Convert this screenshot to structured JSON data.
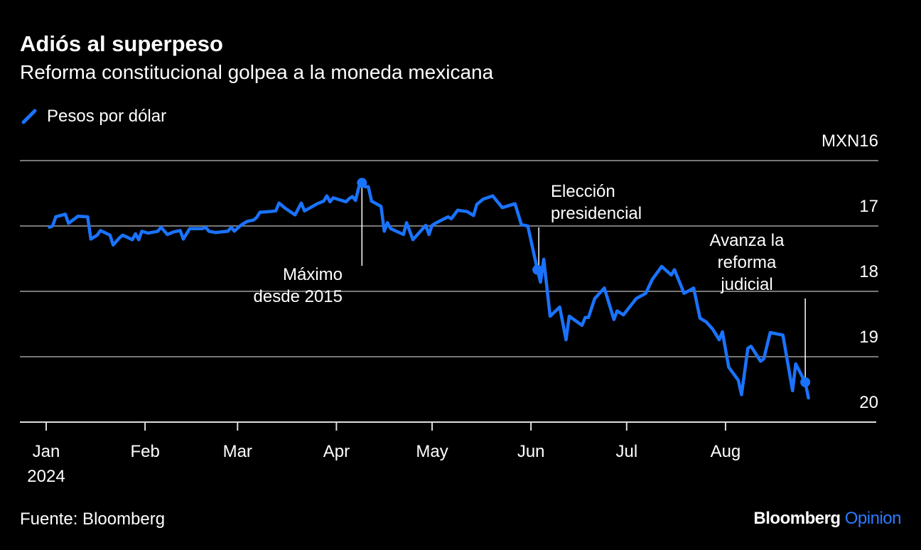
{
  "title": "Adiós al superpeso",
  "subtitle": "Reforma constitucional golpea a la moneda mexicana",
  "source": "Fuente: Bloomberg",
  "logo": {
    "brand": "Bloomberg",
    "product": "Opinion"
  },
  "colors": {
    "line": "#1a73ff",
    "background": "#000000",
    "grid": "#777777",
    "text": "#ffffff",
    "logo_accent": "#2b7bff"
  },
  "chart_data": {
    "type": "line",
    "legend": {
      "entries": [
        "Pesos por dólar"
      ],
      "placement": "top-left"
    },
    "y_axis": {
      "unit_label": "MXN16",
      "ticks": [
        16,
        17,
        18,
        19,
        20
      ],
      "tick_labels": [
        "MXN16",
        "17",
        "18",
        "19",
        "20"
      ],
      "range": [
        16,
        20
      ],
      "inverted": true,
      "position": "right"
    },
    "x_axis": {
      "range": [
        "2024-01-01",
        "2024-08-31"
      ],
      "ticks": [
        "2024-01-01",
        "2024-02-01",
        "2024-03-01",
        "2024-04-01",
        "2024-05-01",
        "2024-06-01",
        "2024-07-01",
        "2024-08-01"
      ],
      "tick_labels": [
        "Jan",
        "Feb",
        "Mar",
        "Apr",
        "May",
        "Jun",
        "Jul",
        "Aug"
      ],
      "year_label": "2024"
    },
    "grid": true,
    "series": [
      {
        "name": "Pesos por dólar",
        "points": [
          [
            "2024-01-02",
            17.02
          ],
          [
            "2024-01-03",
            17.0
          ],
          [
            "2024-01-04",
            16.86
          ],
          [
            "2024-01-07",
            16.82
          ],
          [
            "2024-01-08",
            16.96
          ],
          [
            "2024-01-11",
            16.85
          ],
          [
            "2024-01-14",
            16.86
          ],
          [
            "2024-01-15",
            17.2
          ],
          [
            "2024-01-17",
            17.14
          ],
          [
            "2024-01-18",
            17.07
          ],
          [
            "2024-01-21",
            17.14
          ],
          [
            "2024-01-22",
            17.29
          ],
          [
            "2024-01-24",
            17.18
          ],
          [
            "2024-01-25",
            17.14
          ],
          [
            "2024-01-28",
            17.21
          ],
          [
            "2024-01-29",
            17.12
          ],
          [
            "2024-01-30",
            17.21
          ],
          [
            "2024-01-31",
            17.08
          ],
          [
            "2024-02-02",
            17.11
          ],
          [
            "2024-02-05",
            17.08
          ],
          [
            "2024-02-06",
            17.02
          ],
          [
            "2024-02-08",
            17.13
          ],
          [
            "2024-02-10",
            17.09
          ],
          [
            "2024-02-12",
            17.07
          ],
          [
            "2024-02-13",
            17.2
          ],
          [
            "2024-02-15",
            17.04
          ],
          [
            "2024-02-19",
            17.04
          ],
          [
            "2024-02-20",
            17.02
          ],
          [
            "2024-02-21",
            17.08
          ],
          [
            "2024-02-23",
            17.1
          ],
          [
            "2024-02-27",
            17.08
          ],
          [
            "2024-02-28",
            17.02
          ],
          [
            "2024-02-29",
            17.08
          ],
          [
            "2024-03-02",
            16.99
          ],
          [
            "2024-03-04",
            16.93
          ],
          [
            "2024-03-06",
            16.91
          ],
          [
            "2024-03-07",
            16.87
          ],
          [
            "2024-03-08",
            16.79
          ],
          [
            "2024-03-11",
            16.78
          ],
          [
            "2024-03-13",
            16.77
          ],
          [
            "2024-03-14",
            16.65
          ],
          [
            "2024-03-16",
            16.73
          ],
          [
            "2024-03-19",
            16.83
          ],
          [
            "2024-03-21",
            16.65
          ],
          [
            "2024-03-22",
            16.77
          ],
          [
            "2024-03-26",
            16.66
          ],
          [
            "2024-03-28",
            16.62
          ],
          [
            "2024-03-29",
            16.54
          ],
          [
            "2024-03-30",
            16.63
          ],
          [
            "2024-03-31",
            16.57
          ],
          [
            "2024-04-02",
            16.6
          ],
          [
            "2024-04-04",
            16.63
          ],
          [
            "2024-04-05",
            16.58
          ],
          [
            "2024-04-06",
            16.55
          ],
          [
            "2024-04-07",
            16.61
          ],
          [
            "2024-04-08",
            16.41
          ],
          [
            "2024-04-09",
            16.34
          ],
          [
            "2024-04-10",
            16.4
          ],
          [
            "2024-04-11",
            16.4
          ],
          [
            "2024-04-12",
            16.62
          ],
          [
            "2024-04-15",
            16.7
          ],
          [
            "2024-04-16",
            17.08
          ],
          [
            "2024-04-17",
            16.95
          ],
          [
            "2024-04-18",
            17.04
          ],
          [
            "2024-04-22",
            17.13
          ],
          [
            "2024-04-23",
            16.95
          ],
          [
            "2024-04-25",
            17.21
          ],
          [
            "2024-04-29",
            16.99
          ],
          [
            "2024-04-30",
            17.13
          ],
          [
            "2024-05-01",
            16.99
          ],
          [
            "2024-05-02",
            16.96
          ],
          [
            "2024-05-06",
            16.86
          ],
          [
            "2024-05-07",
            16.89
          ],
          [
            "2024-05-09",
            16.76
          ],
          [
            "2024-05-12",
            16.78
          ],
          [
            "2024-05-14",
            16.84
          ],
          [
            "2024-05-15",
            16.67
          ],
          [
            "2024-05-17",
            16.59
          ],
          [
            "2024-05-20",
            16.54
          ],
          [
            "2024-05-23",
            16.72
          ],
          [
            "2024-05-27",
            16.66
          ],
          [
            "2024-05-29",
            16.98
          ],
          [
            "2024-05-31",
            17.0
          ],
          [
            "2024-06-03",
            17.67
          ],
          [
            "2024-06-04",
            17.86
          ],
          [
            "2024-06-05",
            17.51
          ],
          [
            "2024-06-07",
            18.38
          ],
          [
            "2024-06-10",
            18.24
          ],
          [
            "2024-06-12",
            18.74
          ],
          [
            "2024-06-13",
            18.38
          ],
          [
            "2024-06-17",
            18.52
          ],
          [
            "2024-06-18",
            18.4
          ],
          [
            "2024-06-19",
            18.4
          ],
          [
            "2024-06-21",
            18.11
          ],
          [
            "2024-06-24",
            17.95
          ],
          [
            "2024-06-27",
            18.43
          ],
          [
            "2024-06-28",
            18.3
          ],
          [
            "2024-06-30",
            18.36
          ],
          [
            "2024-07-04",
            18.11
          ],
          [
            "2024-07-07",
            18.03
          ],
          [
            "2024-07-09",
            17.82
          ],
          [
            "2024-07-12",
            17.62
          ],
          [
            "2024-07-15",
            17.75
          ],
          [
            "2024-07-16",
            17.67
          ],
          [
            "2024-07-19",
            18.03
          ],
          [
            "2024-07-22",
            17.95
          ],
          [
            "2024-07-24",
            18.41
          ],
          [
            "2024-07-26",
            18.47
          ],
          [
            "2024-07-28",
            18.58
          ],
          [
            "2024-07-30",
            18.74
          ],
          [
            "2024-07-31",
            18.62
          ],
          [
            "2024-08-02",
            19.16
          ],
          [
            "2024-08-05",
            19.36
          ],
          [
            "2024-08-06",
            19.58
          ],
          [
            "2024-08-08",
            18.87
          ],
          [
            "2024-08-09",
            18.84
          ],
          [
            "2024-08-12",
            19.07
          ],
          [
            "2024-08-13",
            19.03
          ],
          [
            "2024-08-15",
            18.63
          ],
          [
            "2024-08-19",
            18.67
          ],
          [
            "2024-08-22",
            19.52
          ],
          [
            "2024-08-23",
            19.11
          ],
          [
            "2024-08-26",
            19.39
          ],
          [
            "2024-08-27",
            19.63
          ]
        ]
      }
    ],
    "annotations": [
      {
        "date": "2024-04-09",
        "value": 16.34,
        "lines": [
          "Máximo",
          "desde 2015"
        ]
      },
      {
        "date": "2024-06-03",
        "value": 17.67,
        "lines": [
          "Elección",
          "presidencial"
        ]
      },
      {
        "date": "2024-08-26",
        "value": 19.39,
        "lines": [
          "Avanza la",
          "reforma",
          "judicial"
        ]
      }
    ]
  }
}
